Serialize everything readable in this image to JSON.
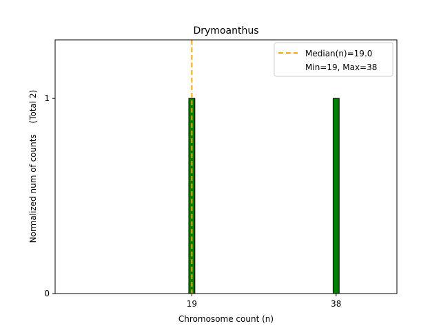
{
  "chart_data": {
    "type": "bar",
    "title": "Drymoanthus",
    "xlabel": "Chromosome count (n)",
    "ylabel": "Normalized num of counts",
    "ylabel_suffix": "(Total 2)",
    "x": [
      19,
      38
    ],
    "values": [
      1,
      1
    ],
    "xticks": [
      "19",
      "38"
    ],
    "yticks": [
      "0",
      "1"
    ],
    "xlim": [
      1.0,
      46.0
    ],
    "ylim": [
      0,
      1.3
    ],
    "bar_width": 0.8,
    "bar_color": "#008000",
    "bar_edge_color": "#000000",
    "median": 19.0,
    "median_color": "#ffa500",
    "legend": {
      "position": "top-right",
      "median_label": "Median(n)=19.0",
      "minmax_label": "Min=19, Max=38"
    },
    "grid": false
  }
}
